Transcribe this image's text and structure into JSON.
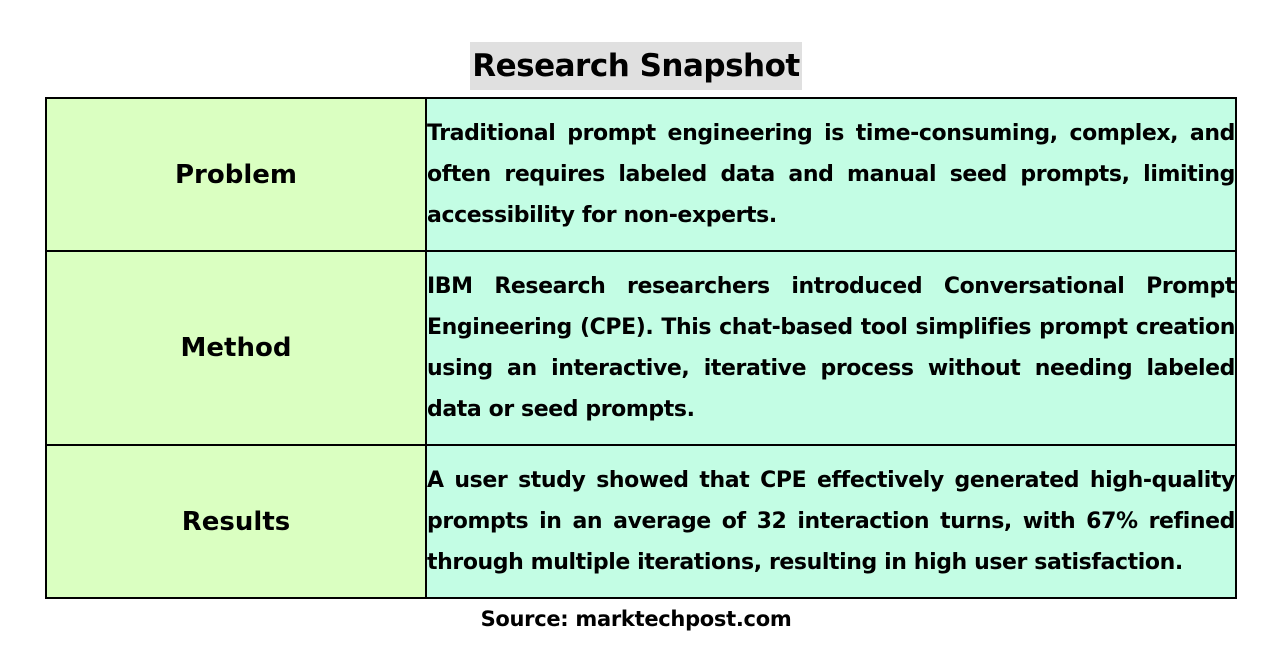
{
  "title": "Research Snapshot",
  "rows": [
    {
      "label": "Problem",
      "text": "Traditional prompt engineering is time-consuming, complex, and often requires labeled data and manual seed prompts, limiting accessibility for non-experts."
    },
    {
      "label": "Method",
      "text": "IBM Research researchers introduced Conversational Prompt Engineering (CPE). This chat-based tool simplifies prompt creation using an interactive, iterative process without needing labeled data or seed prompts."
    },
    {
      "label": "Results",
      "text": "A user study showed that CPE effectively generated high-quality prompts in an average of 32 interaction turns, with 67% refined through multiple iterations, resulting in high user satisfaction."
    }
  ],
  "source": "Source: marktechpost.com",
  "colors": {
    "label_background": "#daffc1",
    "text_background": "#c3fde4",
    "title_background": "#e0e0e0",
    "border": "#000000"
  }
}
